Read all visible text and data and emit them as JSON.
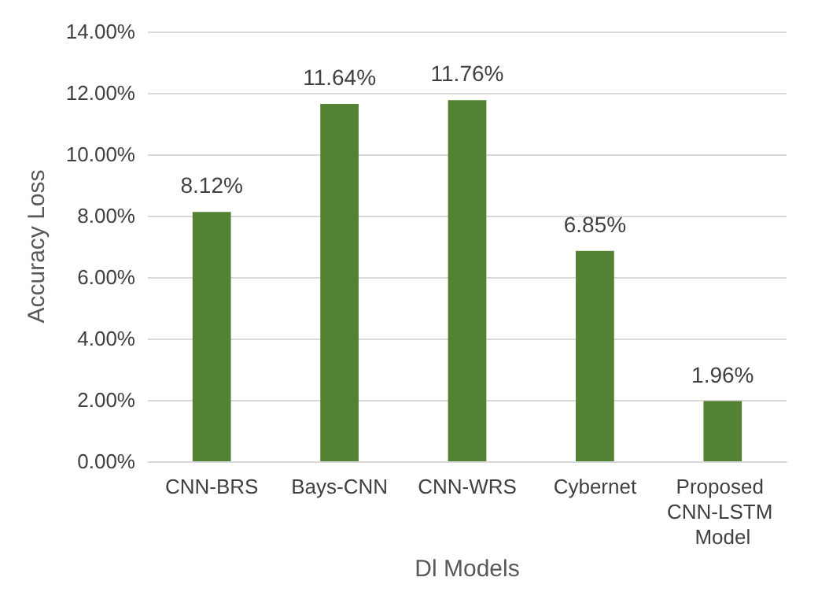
{
  "chart_data": {
    "type": "bar",
    "xlabel": "Dl Models",
    "ylabel": "Accuracy Loss",
    "categories": [
      "CNN-BRS",
      "Bays-CNN",
      "CNN-WRS",
      "Cybernet",
      "Proposed CNN-LSTM Model"
    ],
    "values": [
      8.12,
      11.64,
      11.76,
      6.85,
      1.96
    ],
    "value_labels": [
      "8.12%",
      "11.64%",
      "11.76%",
      "6.85%",
      "1.96%"
    ],
    "color": "#548235",
    "ylim": [
      0,
      14
    ],
    "yticks": [
      {
        "value": 0,
        "label": "0.00%"
      },
      {
        "value": 2,
        "label": "2.00%"
      },
      {
        "value": 4,
        "label": "4.00%"
      },
      {
        "value": 6,
        "label": "6.00%"
      },
      {
        "value": 8,
        "label": "8.00%"
      },
      {
        "value": 10,
        "label": "10.00%"
      },
      {
        "value": 12,
        "label": "12.00%"
      },
      {
        "value": 14,
        "label": "14.00%"
      }
    ],
    "grid": true
  }
}
